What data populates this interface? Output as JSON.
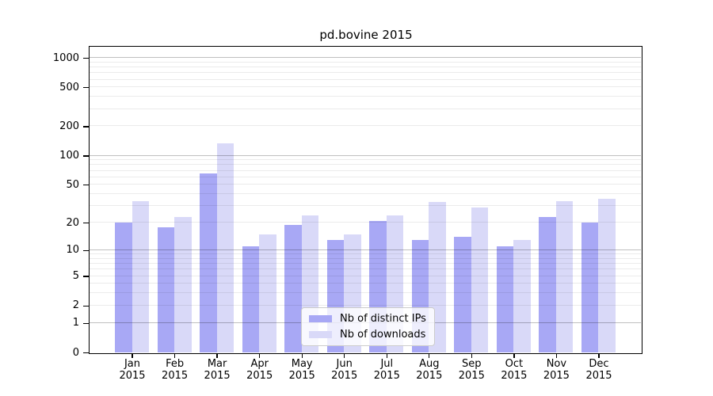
{
  "chart_data": {
    "type": "bar",
    "title": "pd.bovine 2015",
    "categories": [
      "Jan",
      "Feb",
      "Mar",
      "Apr",
      "May",
      "Jun",
      "Jul",
      "Aug",
      "Sep",
      "Oct",
      "Nov",
      "Dec"
    ],
    "year_label": "2015",
    "series": [
      {
        "name": "Nb of distinct IPs",
        "color": "#a8a8f5",
        "values": [
          20,
          18,
          66,
          11,
          19,
          13,
          21,
          13,
          14,
          11,
          23,
          20
        ]
      },
      {
        "name": "Nb of downloads",
        "color": "#d9d9f8",
        "values": [
          34,
          23,
          135,
          15,
          24,
          15,
          24,
          33,
          29,
          13,
          34,
          36
        ]
      }
    ],
    "xlabel": "",
    "ylabel": "",
    "y_scale": "log1p",
    "y_ticks": [
      0,
      1,
      2,
      5,
      10,
      20,
      50,
      100,
      200,
      500,
      1000
    ],
    "major_grid_values": [
      1,
      10,
      100,
      1000
    ],
    "ylim": [
      0,
      1300
    ],
    "grid": "horizontal major+minor, drawn over bars",
    "legend_position": "lower center",
    "colors": {
      "frame": "#000000",
      "major_grid": "rgba(0,0,0,0.25)",
      "minor_grid": "rgba(0,0,0,0.08)",
      "background": "#ffffff"
    }
  }
}
